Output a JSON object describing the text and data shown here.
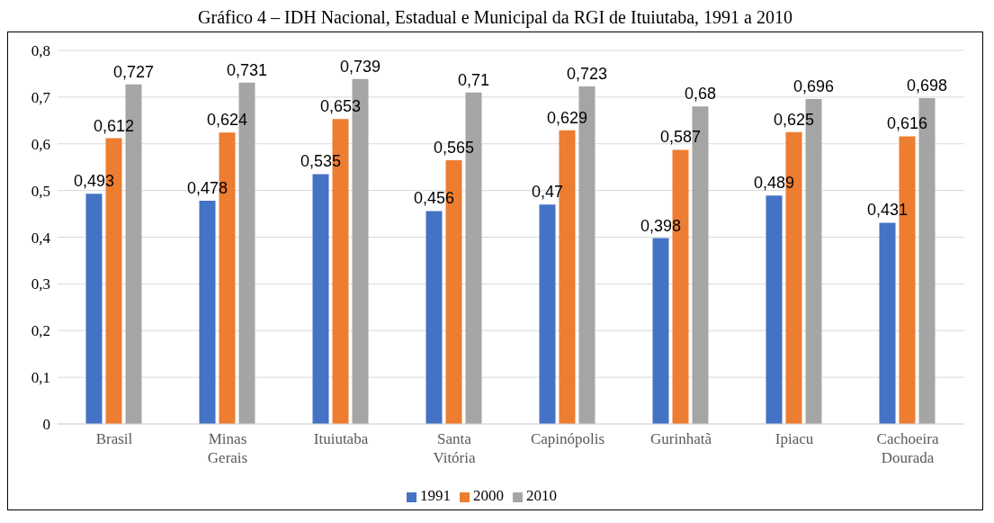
{
  "chart_data": {
    "type": "bar",
    "title": "Gráfico 4 – IDH Nacional, Estadual e Municipal da RGI de Ituiutaba, 1991 a 2010",
    "categories": [
      "Brasil",
      "Minas Gerais",
      "Ituiutaba",
      "Santa Vitória",
      "Capinópolis",
      "Gurinhatã",
      "Ipiacu",
      "Cachoeira Dourada"
    ],
    "series": [
      {
        "name": "1991",
        "color": "#4472c4",
        "values": [
          0.493,
          0.478,
          0.535,
          0.456,
          0.47,
          0.398,
          0.489,
          0.431
        ],
        "value_labels": [
          "0,493",
          "0,478",
          "0,535",
          "0,456",
          "0,47",
          "0,398",
          "0,489",
          "0,431"
        ]
      },
      {
        "name": "2000",
        "color": "#ed7d31",
        "values": [
          0.612,
          0.624,
          0.653,
          0.565,
          0.629,
          0.587,
          0.625,
          0.616
        ],
        "value_labels": [
          "0,612",
          "0,624",
          "0,653",
          "0,565",
          "0,629",
          "0,587",
          "0,625",
          "0,616"
        ]
      },
      {
        "name": "2010",
        "color": "#a5a5a5",
        "values": [
          0.727,
          0.731,
          0.739,
          0.71,
          0.723,
          0.68,
          0.696,
          0.698
        ],
        "value_labels": [
          "0,727",
          "0,731",
          "0,739",
          "0,71",
          "0,723",
          "0,68",
          "0,696",
          "0,698"
        ]
      }
    ],
    "ylim": [
      0,
      0.8
    ],
    "yticks": [
      0,
      {
        "value": 0.1,
        "label": "0,1"
      },
      {
        "value": 0.2,
        "label": "0,2"
      },
      {
        "value": 0.3,
        "label": "0,3"
      },
      {
        "value": 0.4,
        "label": "0,4"
      },
      {
        "value": 0.5,
        "label": "0,5"
      },
      {
        "value": 0.6,
        "label": "0,6"
      },
      {
        "value": 0.7,
        "label": "0,7"
      },
      {
        "value": 0.8,
        "label": "0,8"
      }
    ],
    "grid": "y",
    "legend": "bottom"
  }
}
